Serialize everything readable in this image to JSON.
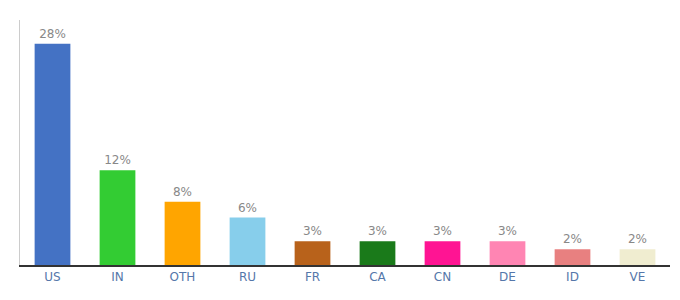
{
  "chart_data": {
    "type": "bar",
    "categories": [
      "US",
      "IN",
      "OTH",
      "RU",
      "FR",
      "CA",
      "CN",
      "DE",
      "ID",
      "VE"
    ],
    "values": [
      28,
      12,
      8,
      6,
      3,
      3,
      3,
      3,
      2,
      2
    ],
    "value_labels": [
      "28%",
      "12%",
      "8%",
      "6%",
      "3%",
      "3%",
      "3%",
      "3%",
      "2%",
      "2%"
    ],
    "colors": [
      "#4472C4",
      "#33CC33",
      "#FFA500",
      "#87CEEB",
      "#B8621B",
      "#1A7A1A",
      "#FF1493",
      "#FF85B3",
      "#E88080",
      "#F0EDD0"
    ],
    "ylim": [
      0,
      31
    ],
    "data_labels": true,
    "tick_labels": "x",
    "grid": false
  }
}
